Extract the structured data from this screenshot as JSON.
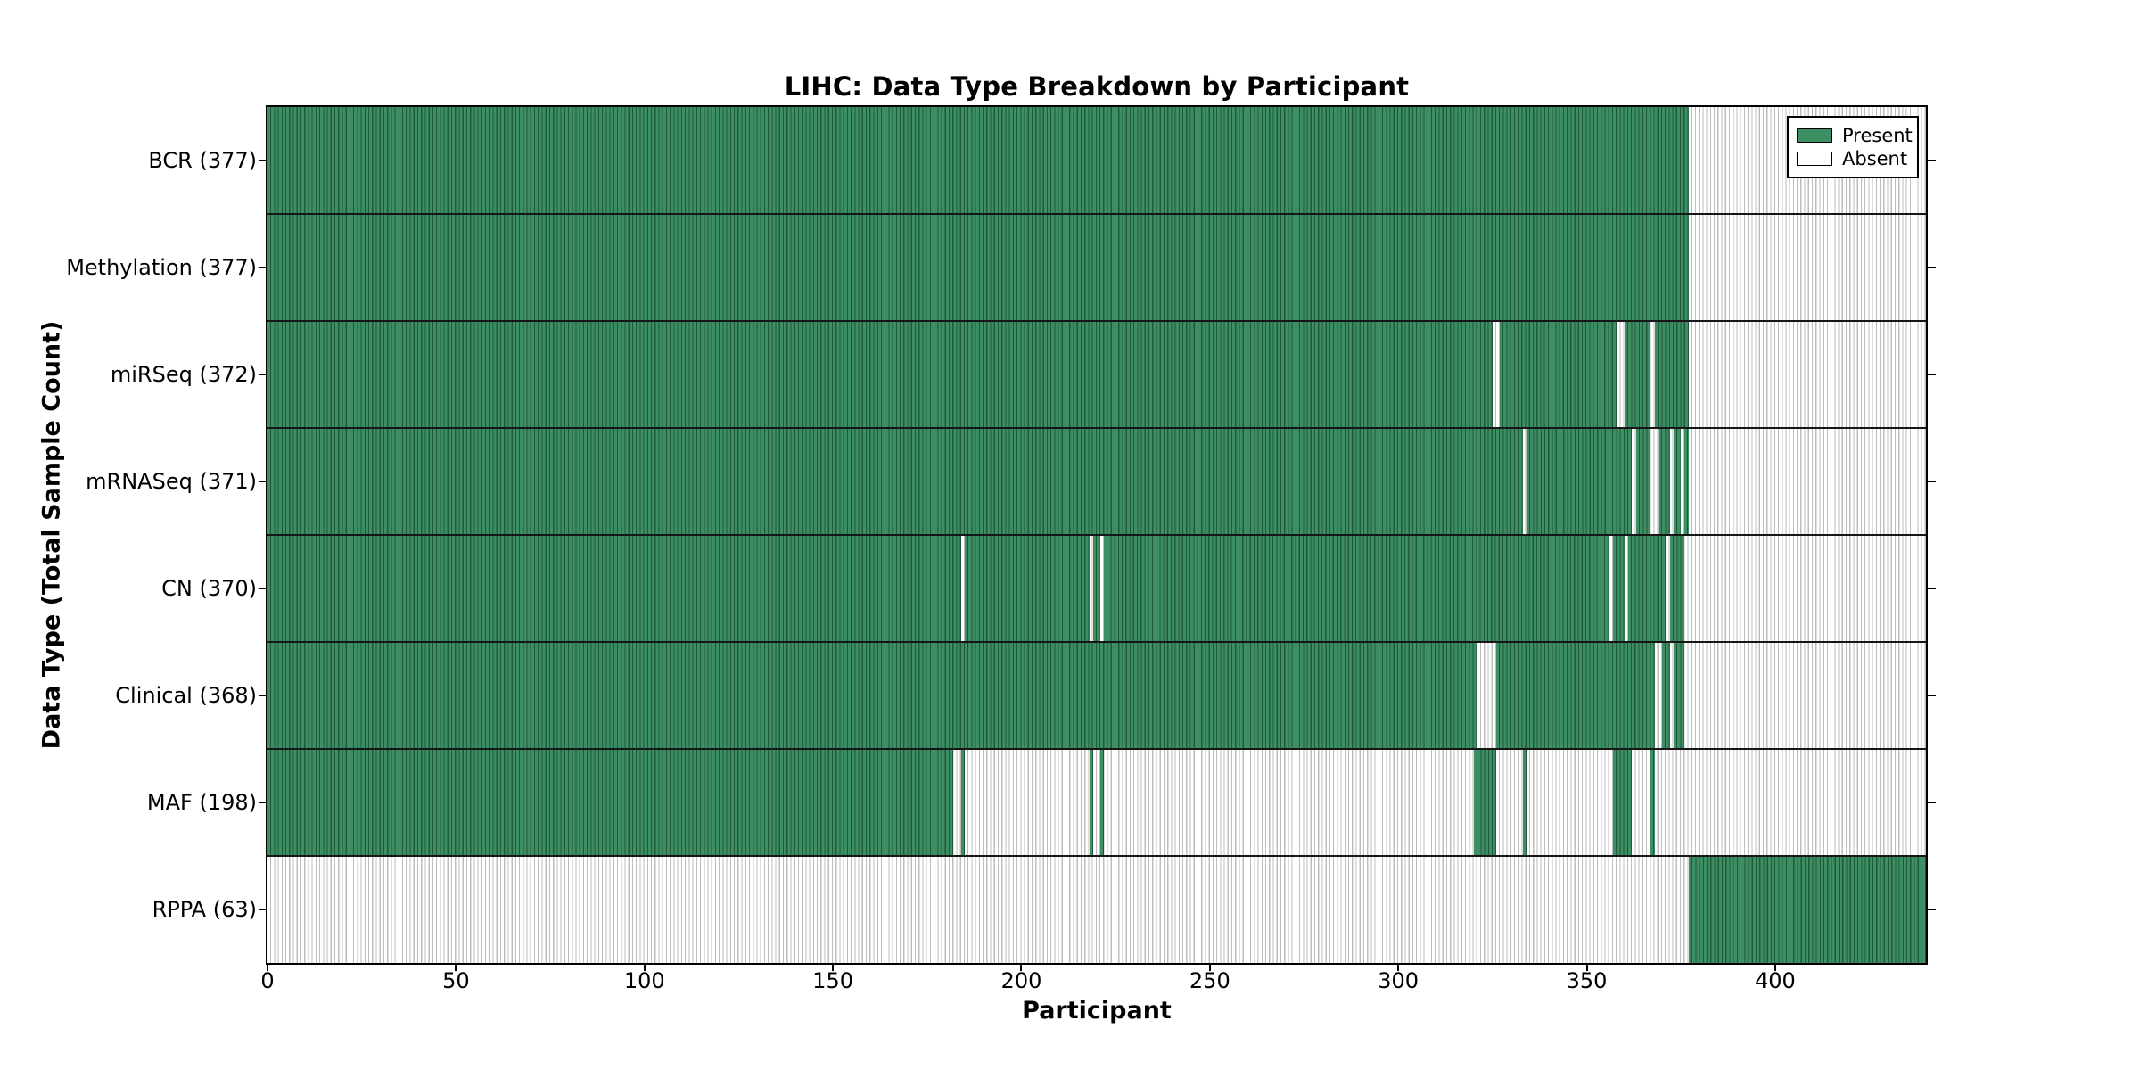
{
  "colors": {
    "present_fill": "#3E8E63",
    "present_edge": "#1E5A39",
    "absent_fill": "#FFFFFF",
    "absent_edge": "#BDBDBD",
    "separator": "#161616",
    "axis": "#000000"
  },
  "legend": {
    "entries": [
      {
        "label": "Present",
        "swatch": "#3E8E63"
      },
      {
        "label": "Absent",
        "swatch": "#FFFFFF"
      }
    ],
    "position": "upper right"
  },
  "chart_data": {
    "type": "heatmap",
    "title": "LIHC: Data Type Breakdown by Participant",
    "xlabel": "Participant",
    "ylabel": "Data Type (Total Sample Count)",
    "xlim": [
      0,
      440
    ],
    "x_ticks": [
      0,
      50,
      100,
      150,
      200,
      250,
      300,
      350,
      400
    ],
    "grid": false,
    "legend_entries": [
      {
        "label": "Present"
      },
      {
        "label": "Absent"
      }
    ],
    "value_encoding": {
      "present": "green bar",
      "absent": "white bar"
    },
    "rows": [
      {
        "name": "BCR",
        "label": "BCR (377)",
        "count": 377,
        "present_ranges": [
          [
            0,
            377
          ]
        ]
      },
      {
        "name": "Methylation",
        "label": "Methylation (377)",
        "count": 377,
        "present_ranges": [
          [
            0,
            377
          ]
        ]
      },
      {
        "name": "miRSeq",
        "label": "miRSeq (372)",
        "count": 372,
        "present_ranges": [
          [
            0,
            325
          ],
          [
            327,
            358
          ],
          [
            360,
            367
          ],
          [
            368,
            377
          ]
        ]
      },
      {
        "name": "mRNASeq",
        "label": "mRNASeq (371)",
        "count": 371,
        "present_ranges": [
          [
            0,
            333
          ],
          [
            334,
            362
          ],
          [
            363,
            367
          ],
          [
            369,
            372
          ],
          [
            373,
            375
          ],
          [
            376,
            377
          ]
        ]
      },
      {
        "name": "CN",
        "label": "CN (370)",
        "count": 370,
        "present_ranges": [
          [
            0,
            184
          ],
          [
            185,
            218
          ],
          [
            219,
            221
          ],
          [
            222,
            356
          ],
          [
            357,
            360
          ],
          [
            361,
            371
          ],
          [
            372,
            376
          ]
        ]
      },
      {
        "name": "Clinical",
        "label": "Clinical (368)",
        "count": 368,
        "present_ranges": [
          [
            0,
            321
          ],
          [
            326,
            368
          ],
          [
            370,
            372
          ],
          [
            373,
            376
          ]
        ]
      },
      {
        "name": "MAF",
        "label": "MAF (198)",
        "count": 198,
        "present_ranges": [
          [
            0,
            182
          ],
          [
            184,
            185
          ],
          [
            218,
            219
          ],
          [
            221,
            222
          ],
          [
            320,
            326
          ],
          [
            333,
            334
          ],
          [
            357,
            362
          ],
          [
            367,
            368
          ]
        ]
      },
      {
        "name": "RPPA",
        "label": "RPPA (63)",
        "count": 63,
        "present_ranges": [
          [
            377,
            440
          ]
        ]
      }
    ]
  }
}
